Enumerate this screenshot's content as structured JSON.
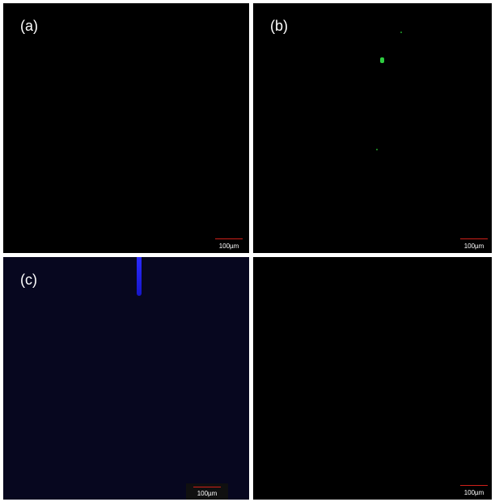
{
  "panels": [
    {
      "label": "(a)",
      "scale_bar": "100µm"
    },
    {
      "label": "(b)",
      "scale_bar": "100µm"
    },
    {
      "label": "(c)",
      "scale_bar": "100µm"
    },
    {
      "scale_bar": "100µm"
    }
  ]
}
